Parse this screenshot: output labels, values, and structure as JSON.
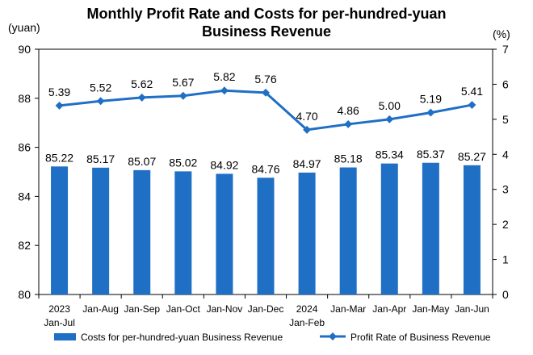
{
  "chart_data": {
    "type": "bar+line",
    "title_line1": "Monthly Profit Rate and Costs for per-hundred-yuan",
    "title_line2": "Business Revenue",
    "left_unit": "(yuan)",
    "right_unit": "(%)",
    "categories": [
      [
        "2023",
        "Jan-Jul"
      ],
      [
        "Jan-Aug"
      ],
      [
        "Jan-Sep"
      ],
      [
        "Jan-Oct"
      ],
      [
        "Jan-Nov"
      ],
      [
        "Jan-Dec"
      ],
      [
        "2024",
        "Jan-Feb"
      ],
      [
        "Jan-Mar"
      ],
      [
        "Jan-Apr"
      ],
      [
        "Jan-May"
      ],
      [
        "Jan-Jun"
      ]
    ],
    "left_axis": {
      "min": 80,
      "max": 90,
      "ticks": [
        80,
        82,
        84,
        86,
        88,
        90
      ]
    },
    "right_axis": {
      "min": 0,
      "max": 7,
      "ticks": [
        0,
        1,
        2,
        3,
        4,
        5,
        6,
        7
      ]
    },
    "series": [
      {
        "name": "Costs for per-hundred-yuan Business Revenue",
        "type": "bar",
        "axis": "left",
        "color": "#1f6fc5",
        "values": [
          85.22,
          85.17,
          85.07,
          85.02,
          84.92,
          84.76,
          84.97,
          85.18,
          85.34,
          85.37,
          85.27
        ],
        "labels": [
          "85.22",
          "85.17",
          "85.07",
          "85.02",
          "84.92",
          "84.76",
          "84.97",
          "85.18",
          "85.34",
          "85.37",
          "85.27"
        ]
      },
      {
        "name": "Profit Rate of Business Revenue",
        "type": "line",
        "axis": "right",
        "color": "#1f6fc5",
        "values": [
          5.39,
          5.52,
          5.62,
          5.67,
          5.82,
          5.76,
          4.7,
          4.86,
          5.0,
          5.19,
          5.41
        ],
        "labels": [
          "5.39",
          "5.52",
          "5.62",
          "5.67",
          "5.82",
          "5.76",
          "4.70",
          "4.86",
          "5.00",
          "5.19",
          "5.41"
        ]
      }
    ],
    "legend_position": "bottom",
    "grid": false
  }
}
